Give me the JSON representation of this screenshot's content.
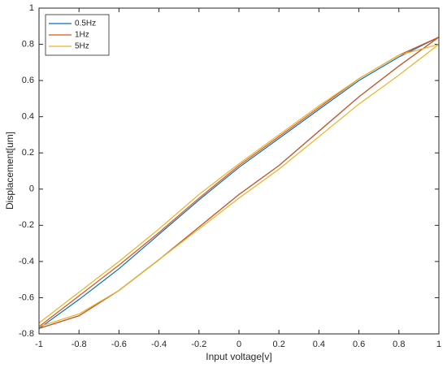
{
  "chart_data": {
    "type": "line",
    "xlabel": "Input voltage[v]",
    "ylabel": "Displacement[um]",
    "xlim": [
      -1,
      1
    ],
    "xticks": [
      -1,
      -0.8,
      -0.6,
      -0.4,
      -0.2,
      0,
      0.2,
      0.4,
      0.6,
      0.8,
      1
    ],
    "ylim": [
      -0.8,
      1
    ],
    "yticks": [
      -0.8,
      -0.6,
      -0.4,
      -0.2,
      0,
      0.2,
      0.4,
      0.6,
      0.8,
      1
    ],
    "legend": "northwest",
    "series": [
      {
        "name": "0.5Hz",
        "color": "#0072bd",
        "x": [
          -1,
          -0.8,
          -0.6,
          -0.4,
          -0.2,
          0,
          0.2,
          0.4,
          0.6,
          0.8,
          1,
          0.8,
          0.6,
          0.4,
          0.2,
          0,
          -0.2,
          -0.4,
          -0.6,
          -0.8,
          -1
        ],
        "values": [
          -0.77,
          -0.7,
          -0.56,
          -0.39,
          -0.21,
          -0.03,
          0.13,
          0.32,
          0.51,
          0.68,
          0.84,
          0.73,
          0.6,
          0.44,
          0.28,
          0.12,
          -0.06,
          -0.25,
          -0.44,
          -0.61,
          -0.77
        ]
      },
      {
        "name": "1Hz",
        "color": "#d95319",
        "x": [
          -1,
          -0.8,
          -0.6,
          -0.4,
          -0.2,
          0,
          0.2,
          0.4,
          0.6,
          0.8,
          1,
          0.8,
          0.6,
          0.4,
          0.2,
          0,
          -0.2,
          -0.4,
          -0.6,
          -0.8,
          -1
        ],
        "values": [
          -0.77,
          -0.7,
          -0.56,
          -0.39,
          -0.21,
          -0.03,
          0.13,
          0.32,
          0.51,
          0.68,
          0.84,
          0.74,
          0.61,
          0.45,
          0.29,
          0.13,
          -0.05,
          -0.24,
          -0.42,
          -0.59,
          -0.76
        ]
      },
      {
        "name": "5Hz",
        "color": "#edb120",
        "x": [
          -1,
          -0.8,
          -0.6,
          -0.4,
          -0.2,
          0,
          0.2,
          0.4,
          0.6,
          0.8,
          1,
          0.8,
          0.6,
          0.4,
          0.2,
          0,
          -0.2,
          -0.4,
          -0.6,
          -0.8,
          -1
        ],
        "values": [
          -0.76,
          -0.69,
          -0.56,
          -0.39,
          -0.22,
          -0.05,
          0.11,
          0.29,
          0.47,
          0.63,
          0.8,
          0.74,
          0.61,
          0.46,
          0.3,
          0.14,
          -0.03,
          -0.22,
          -0.4,
          -0.57,
          -0.74
        ]
      }
    ]
  }
}
